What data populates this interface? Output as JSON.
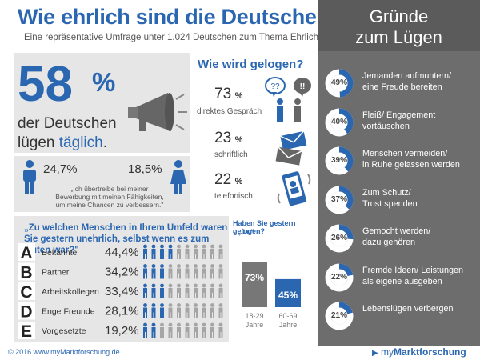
{
  "header": {
    "title": "Wie ehrlich sind die Deutschen?",
    "subtitle": "Eine repräsentative Umfrage unter 1.024 Deutschen zum Thema Ehrlichkeit"
  },
  "headline": {
    "value": "58",
    "unit": "%",
    "line1": "der Deutschen",
    "line2_prefix": "lügen ",
    "line2_highlight": "täglich",
    "line2_suffix": "."
  },
  "gender": {
    "male_pct": "24,7%",
    "female_pct": "18,5%",
    "quote_line1": "„Ich übertreibe bei meiner",
    "quote_line2": "Bewerbung mit meinen Fähigkeiten,",
    "quote_line3": "um meine Chancen zu verbessern.\""
  },
  "methods": {
    "title": "Wie wird gelogen?",
    "items": [
      {
        "value": "73",
        "unit": "%",
        "label": "direktes Gespräch"
      },
      {
        "value": "23",
        "unit": "%",
        "label": "schriftlich"
      },
      {
        "value": "22",
        "unit": "%",
        "label": "telefonisch"
      }
    ],
    "bubble1": "??",
    "bubble2": "!!"
  },
  "sidebar": {
    "title_line1": "Gründe",
    "title_line2": "zum Lügen"
  },
  "question": {
    "text": "„Zu welchen Menschen in Ihrem Umfeld waren Sie gestern unehrlich, selbst wenn es zum Guten war?\""
  },
  "yesterday": {
    "title": "Haben Sie gestern gelogen?",
    "subtitle": "- „Ja.\"",
    "age_unit": "Jahre"
  },
  "chart_data": [
    {
      "type": "pie",
      "title": "Gründe zum Lügen",
      "categories": [
        "Jemanden aufmuntern/ eine Freude bereiten",
        "Fleiß/ Engagement vortäuschen",
        "Menschen vermeiden/ in Ruhe gelassen werden",
        "Zum Schutz/ Trost spenden",
        "Gemocht werden/ dazu gehören",
        "Fremde Ideen/ Leistungen als eigene ausgeben",
        "Lebenslügen verbergen"
      ],
      "values": [
        49,
        40,
        39,
        37,
        26,
        22,
        21
      ],
      "labels": [
        "49%",
        "40%",
        "39%",
        "37%",
        "26%",
        "22%",
        "21%"
      ],
      "lines": [
        [
          "Jemanden aufmuntern/",
          "eine Freude bereiten"
        ],
        [
          "Fleiß/ Engagement",
          "vortäuschen"
        ],
        [
          "Menschen vermeiden/",
          "in Ruhe gelassen werden"
        ],
        [
          "Zum Schutz/",
          "Trost spenden"
        ],
        [
          "Gemocht werden/",
          "dazu gehören"
        ],
        [
          "Fremde Ideen/ Leistungen",
          "als eigene ausgeben"
        ],
        [
          "Lebenslügen verbergen"
        ]
      ],
      "colors": {
        "fill": "#2b67b1",
        "track": "#ffffff"
      }
    },
    {
      "type": "bar",
      "title": "Zu welchen Menschen in Ihrem Umfeld waren Sie gestern unehrlich, selbst wenn es zum Guten war?",
      "letters": [
        "A",
        "B",
        "C",
        "D",
        "E"
      ],
      "categories": [
        "Bekannte",
        "Partner",
        "Arbeitskollegen",
        "Enge Freunde",
        "Vorgesetzte"
      ],
      "values": [
        44.4,
        34.2,
        33.4,
        28.1,
        19.2
      ],
      "labels": [
        "44,4%",
        "34,2%",
        "33,4%",
        "28,1%",
        "19,2%"
      ],
      "ylim": [
        0,
        100
      ],
      "colors": {
        "fill": "#2b67b1",
        "empty": "#a5a5a5"
      }
    },
    {
      "type": "bar",
      "title": "Haben Sie gestern gelogen? - „Ja.\"",
      "categories": [
        "18-29",
        "60-69"
      ],
      "values": [
        73,
        45
      ],
      "labels": [
        "73%",
        "45%"
      ],
      "ylim": [
        0,
        100
      ],
      "colors": [
        "#777777",
        "#2b67b1"
      ]
    }
  ]
}
